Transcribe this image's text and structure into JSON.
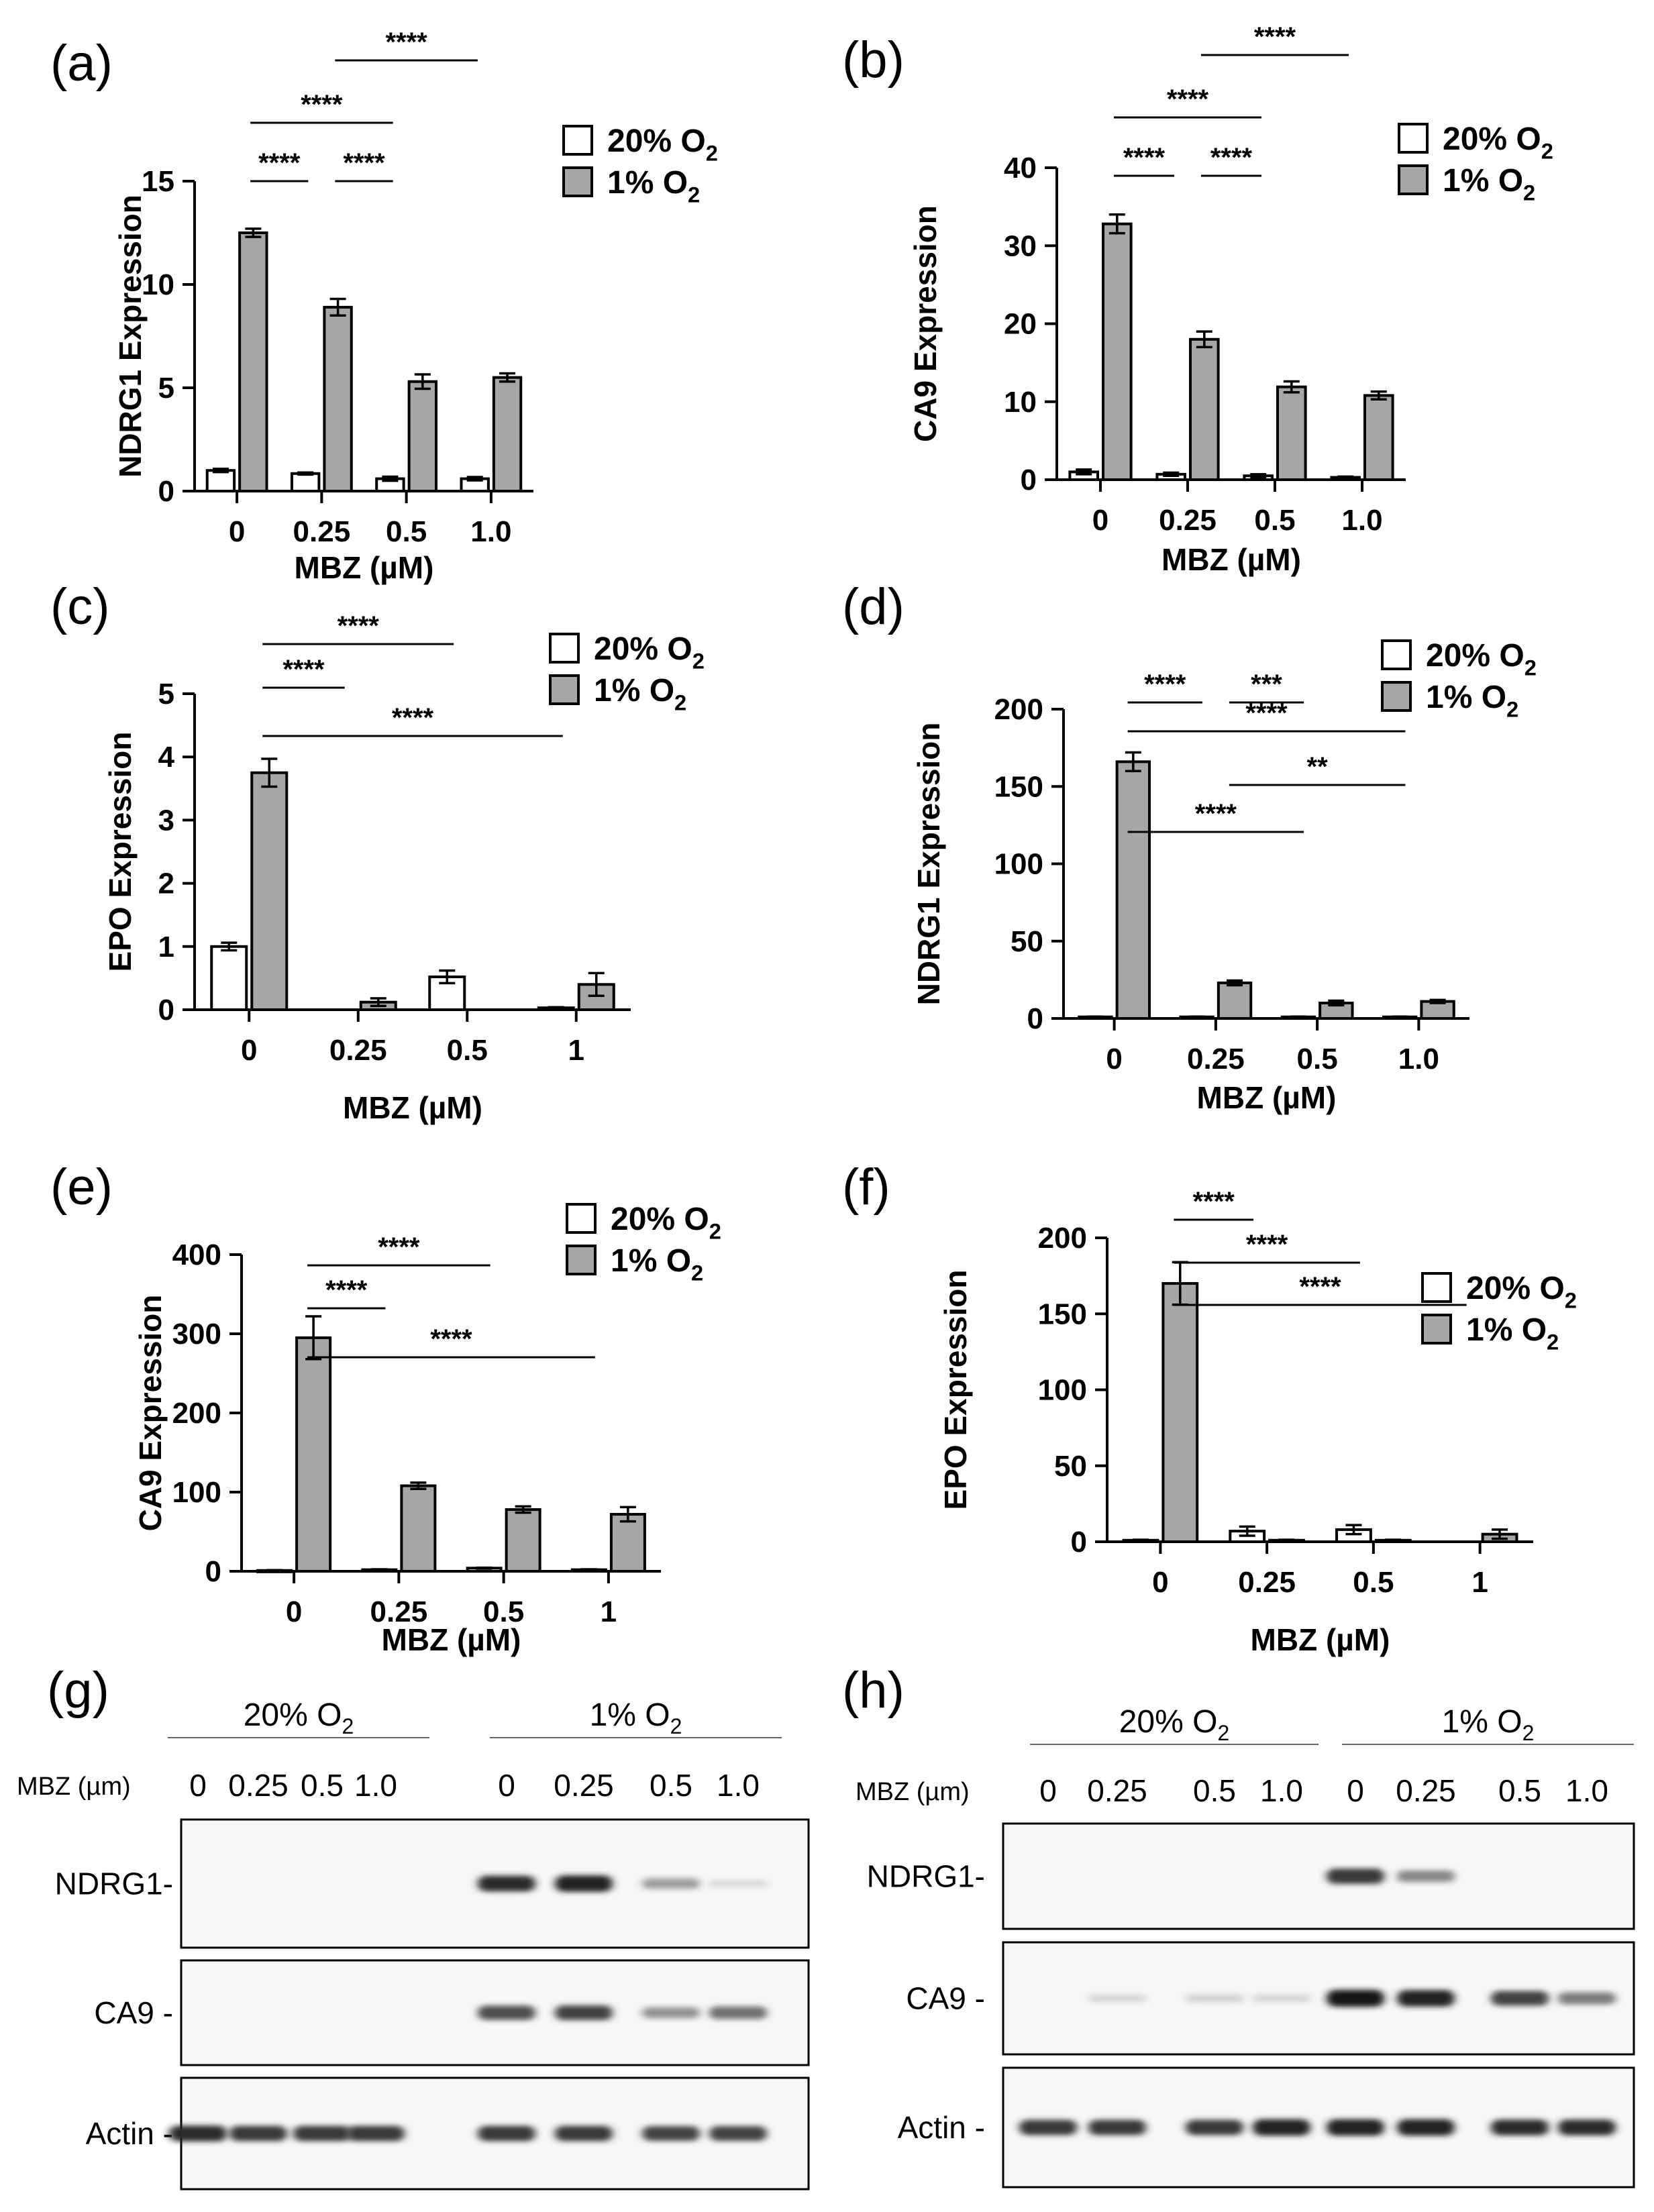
{
  "legend": {
    "normoxia": "20% O",
    "hypoxia": "1% O",
    "sub": "2"
  },
  "colors": {
    "normoxia": "#ffffff",
    "hypoxia": "#a6a6a6",
    "stroke": "#000000"
  },
  "chart_data": [
    {
      "panel": "(a)",
      "type": "bar",
      "ylabel": "NDRG1 Expression",
      "xlabel": "MBZ (µM)",
      "categories": [
        "0",
        "0.25",
        "0.5",
        "1.0"
      ],
      "ylim": [
        0,
        15
      ],
      "yticks": [
        "0",
        "5",
        "10",
        "15"
      ],
      "series": [
        {
          "name": "20% O2",
          "values": [
            1.0,
            0.85,
            0.6,
            0.6
          ],
          "errors": [
            0.08,
            0.05,
            0.1,
            0.08
          ]
        },
        {
          "name": "1% O2",
          "values": [
            12.5,
            8.9,
            5.3,
            5.5
          ],
          "errors": [
            0.2,
            0.4,
            0.35,
            0.2
          ]
        }
      ],
      "significance": [
        {
          "label": "****",
          "from": 0,
          "to": 1
        },
        {
          "label": "****",
          "from": 1,
          "to": 2
        },
        {
          "label": "****",
          "from": 0,
          "to": 2
        },
        {
          "label": "****",
          "from": 1,
          "to": 3
        }
      ]
    },
    {
      "panel": "(b)",
      "type": "bar",
      "ylabel": "CA9 Expression",
      "xlabel": "MBZ (µM)",
      "categories": [
        "0",
        "0.25",
        "0.5",
        "1.0"
      ],
      "ylim": [
        0,
        40
      ],
      "yticks": [
        "0",
        "10",
        "20",
        "30",
        "40"
      ],
      "series": [
        {
          "name": "20% O2",
          "values": [
            1.0,
            0.7,
            0.5,
            0.3
          ],
          "errors": [
            0.3,
            0.2,
            0.2,
            0.1
          ]
        },
        {
          "name": "1% O2",
          "values": [
            32.8,
            18.0,
            11.9,
            10.8
          ],
          "errors": [
            1.2,
            1.0,
            0.7,
            0.5
          ]
        }
      ],
      "significance": [
        {
          "label": "****",
          "from": 0,
          "to": 1
        },
        {
          "label": "****",
          "from": 1,
          "to": 2
        },
        {
          "label": "****",
          "from": 0,
          "to": 2
        },
        {
          "label": "****",
          "from": 1,
          "to": 3
        }
      ]
    },
    {
      "panel": "(c)",
      "type": "bar",
      "ylabel": "EPO Expression",
      "xlabel": "MBZ (µM)",
      "categories": [
        "0",
        "0.25",
        "0.5",
        "1"
      ],
      "ylim": [
        0,
        5
      ],
      "yticks": [
        "0",
        "1",
        "2",
        "3",
        "4",
        "5"
      ],
      "series": [
        {
          "name": "20% O2",
          "values": [
            1.0,
            0.0,
            0.52,
            0.03
          ],
          "errors": [
            0.06,
            0.0,
            0.1,
            0.01
          ]
        },
        {
          "name": "1% O2",
          "values": [
            3.75,
            0.12,
            0.0,
            0.4
          ],
          "errors": [
            0.22,
            0.06,
            0.0,
            0.18
          ]
        }
      ],
      "significance": [
        {
          "label": "****",
          "from": 0,
          "to": 1
        },
        {
          "label": "****",
          "from": 0,
          "to": 2
        },
        {
          "label": "****",
          "from": 0,
          "to": 3
        }
      ]
    },
    {
      "panel": "(d)",
      "type": "bar",
      "ylabel": "NDRG1 Expression",
      "xlabel": "MBZ (µM)",
      "categories": [
        "0",
        "0.25",
        "0.5",
        "1.0"
      ],
      "ylim": [
        0,
        200
      ],
      "yticks": [
        "0",
        "50",
        "100",
        "150",
        "200"
      ],
      "series": [
        {
          "name": "20% O2",
          "values": [
            1.0,
            1.0,
            1.0,
            1.0
          ],
          "errors": [
            0.2,
            0.2,
            0.2,
            0.2
          ]
        },
        {
          "name": "1% O2",
          "values": [
            166,
            23,
            10,
            11
          ],
          "errors": [
            6,
            1.5,
            1.5,
            1
          ]
        }
      ],
      "significance": [
        {
          "label": "****",
          "from": 0,
          "to": 1
        },
        {
          "label": "***",
          "from": 1,
          "to": 2
        },
        {
          "label": "****",
          "from": 0,
          "to": 3
        },
        {
          "label": "**",
          "from": 1,
          "to": 3
        },
        {
          "label": "****",
          "from": 0,
          "to": 2
        }
      ]
    },
    {
      "panel": "(e)",
      "type": "bar",
      "ylabel": "CA9 Expression",
      "xlabel": "MBZ (µM)",
      "categories": [
        "0",
        "0.25",
        "0.5",
        "1"
      ],
      "ylim": [
        0,
        400
      ],
      "yticks": [
        "0",
        "100",
        "200",
        "300",
        "400"
      ],
      "series": [
        {
          "name": "20% O2",
          "values": [
            1.0,
            2.0,
            4.0,
            2.0
          ],
          "errors": [
            0.5,
            0.5,
            0.6,
            0.5
          ]
        },
        {
          "name": "1% O2",
          "values": [
            295,
            108,
            78,
            72
          ],
          "errors": [
            27,
            4,
            4,
            9
          ]
        }
      ],
      "significance": [
        {
          "label": "****",
          "from": 0,
          "to": 2
        },
        {
          "label": "****",
          "from": 0,
          "to": 1
        },
        {
          "label": "****",
          "from": 0,
          "to": 3
        }
      ]
    },
    {
      "panel": "(f)",
      "type": "bar",
      "ylabel": "EPO Expression",
      "xlabel": "MBZ (µM)",
      "categories": [
        "0",
        "0.25",
        "0.5",
        "1"
      ],
      "ylim": [
        0,
        200
      ],
      "yticks": [
        "0",
        "50",
        "100",
        "150",
        "200"
      ],
      "series": [
        {
          "name": "20% O2",
          "values": [
            1.0,
            7.0,
            8.0,
            0.0
          ],
          "errors": [
            0.3,
            3.0,
            3.0,
            0.0
          ]
        },
        {
          "name": "1% O2",
          "values": [
            170,
            1.0,
            1.0,
            5.0
          ],
          "errors": [
            14,
            0.3,
            0.3,
            3.0
          ]
        }
      ],
      "significance": [
        {
          "label": "****",
          "from": 0,
          "to": 1
        },
        {
          "label": "****",
          "from": 0,
          "to": 2
        },
        {
          "label": "****",
          "from": 0,
          "to": 3
        }
      ]
    }
  ],
  "blots": [
    {
      "panel": "(g)",
      "condition_labels": [
        "20% O",
        "1% O"
      ],
      "dose_label": "MBZ (µm)",
      "doses": [
        "0",
        "0.25",
        "0.5",
        "1.0",
        "0",
        "0.25",
        "0.5",
        "1.0"
      ],
      "rows": [
        {
          "label": "NDRG1-",
          "intensities": [
            0,
            0,
            0,
            0,
            0.85,
            0.9,
            0.35,
            0.08
          ]
        },
        {
          "label": "CA9 -",
          "intensities": [
            0,
            0,
            0,
            0,
            0.7,
            0.75,
            0.4,
            0.55
          ]
        },
        {
          "label": "Actin -",
          "intensities": [
            0.85,
            0.8,
            0.8,
            0.8,
            0.8,
            0.8,
            0.75,
            0.75
          ]
        }
      ]
    },
    {
      "panel": "(h)",
      "condition_labels": [
        "20% O",
        "1% O"
      ],
      "dose_label": "MBZ (µm)",
      "doses": [
        "0",
        "0.25",
        "0.5",
        "1.0",
        "0",
        "0.25",
        "0.5",
        "1.0"
      ],
      "rows": [
        {
          "label": "NDRG1-",
          "intensities": [
            0,
            0,
            0,
            0,
            0.8,
            0.45,
            0,
            0
          ]
        },
        {
          "label": "CA9 -",
          "intensities": [
            0,
            0.1,
            0.12,
            0.1,
            0.95,
            0.9,
            0.75,
            0.5
          ]
        },
        {
          "label": "Actin -",
          "intensities": [
            0.8,
            0.8,
            0.8,
            0.9,
            0.9,
            0.9,
            0.85,
            0.85
          ]
        }
      ]
    }
  ]
}
